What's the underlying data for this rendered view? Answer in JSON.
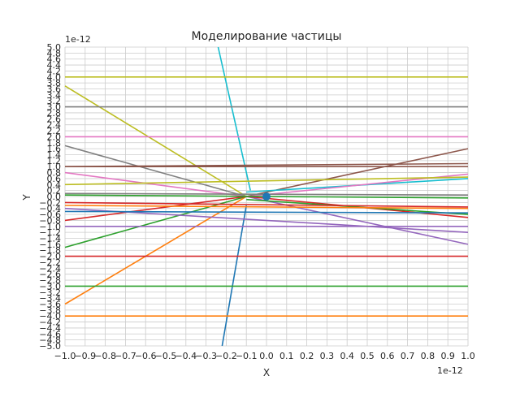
{
  "chart_data": {
    "type": "line",
    "title": "Моделирование частицы",
    "xlabel": "X",
    "ylabel": "Y",
    "x_offset_label": "1e-12",
    "y_offset_label": "1e-12",
    "xlim": [
      -1.0,
      1.0
    ],
    "ylim": [
      -5.0,
      5.0
    ],
    "grid": true,
    "x_ticks": [
      "−1.0",
      "−0.9",
      "−0.8",
      "−0.7",
      "−0.6",
      "−0.5",
      "−0.4",
      "−0.3",
      "−0.2",
      "−0.1",
      "0.0",
      "0.1",
      "0.2",
      "0.3",
      "0.4",
      "0.5",
      "0.6",
      "0.7",
      "0.8",
      "0.9",
      "1.0"
    ],
    "y_tick_values": [
      -5.0,
      -4.8,
      -4.6,
      -4.4,
      -4.2,
      -4.0,
      -3.8,
      -3.6,
      -3.4,
      -3.2,
      -3.0,
      -2.8,
      -2.6,
      -2.4,
      -2.2,
      -2.0,
      -1.8,
      -1.6,
      -1.4,
      -1.2,
      -1.0,
      -0.8,
      -0.6,
      -0.4,
      -0.2,
      0.0,
      0.2,
      0.4,
      0.6,
      0.8,
      1.0,
      1.2,
      1.4,
      1.6,
      1.8,
      2.0,
      2.2,
      2.4,
      2.6,
      2.8,
      3.0,
      3.2,
      3.4,
      3.6,
      3.8,
      4.0,
      4.2,
      4.4,
      4.6,
      4.8,
      5.0
    ],
    "y_tick_labels_legible": [
      "−5.0",
      "5.0"
    ],
    "particle_marker": {
      "x": 0.0,
      "y": 0.0,
      "color": "#1f77b4"
    },
    "series": [
      {
        "color": "#1f77b4",
        "points": [
          [
            -0.22,
            -5.0
          ],
          [
            -0.1,
            -0.3
          ]
        ]
      },
      {
        "color": "#17becf",
        "points": [
          [
            -0.24,
            5.0
          ],
          [
            -0.08,
            0.2
          ]
        ]
      },
      {
        "color": "#ff7f0e",
        "points": [
          [
            -1.0,
            -3.6
          ],
          [
            -0.1,
            0.0
          ]
        ]
      },
      {
        "color": "#2ca02c",
        "points": [
          [
            -1.0,
            -1.7
          ],
          [
            -0.1,
            0.0
          ]
        ]
      },
      {
        "color": "#d62728",
        "points": [
          [
            -1.0,
            -0.8
          ],
          [
            -0.1,
            0.0
          ]
        ]
      },
      {
        "color": "#bcbd22",
        "points": [
          [
            -1.0,
            3.7
          ],
          [
            -0.1,
            0.0
          ]
        ]
      },
      {
        "color": "#7f7f7f",
        "points": [
          [
            -1.0,
            1.7
          ],
          [
            -0.1,
            0.0
          ]
        ]
      },
      {
        "color": "#e377c2",
        "points": [
          [
            -1.0,
            0.8
          ],
          [
            -0.1,
            0.0
          ]
        ]
      },
      {
        "color": "#8c564b",
        "points": [
          [
            -0.1,
            0.0
          ],
          [
            1.0,
            1.6
          ]
        ]
      },
      {
        "color": "#8c564b",
        "points": [
          [
            -1.0,
            1.0
          ],
          [
            1.0,
            1.1
          ]
        ]
      },
      {
        "color": "#9467bd",
        "points": [
          [
            -0.1,
            0.0
          ],
          [
            1.0,
            -1.6
          ]
        ]
      },
      {
        "color": "#17becf",
        "points": [
          [
            -0.1,
            0.15
          ],
          [
            1.0,
            0.6
          ]
        ]
      },
      {
        "color": "#e377c2",
        "points": [
          [
            -0.1,
            0.0
          ],
          [
            1.0,
            0.75
          ]
        ]
      },
      {
        "color": "#bcbd22",
        "points": [
          [
            -1.0,
            0.4
          ],
          [
            1.0,
            0.65
          ]
        ]
      },
      {
        "color": "#d62728",
        "points": [
          [
            -0.1,
            0.0
          ],
          [
            1.0,
            -0.7
          ]
        ]
      },
      {
        "color": "#2ca02c",
        "points": [
          [
            -0.1,
            -0.1
          ],
          [
            1.0,
            -0.6
          ]
        ]
      },
      {
        "color": "#9467bd",
        "points": [
          [
            -1.0,
            -0.4
          ],
          [
            1.0,
            -1.2
          ]
        ]
      },
      {
        "color": "#1f77b4",
        "points": [
          [
            -1.0,
            -0.5
          ],
          [
            1.0,
            -0.55
          ]
        ]
      },
      {
        "color": "#ff7f0e",
        "points": [
          [
            -1.0,
            -0.3
          ],
          [
            1.0,
            -0.4
          ]
        ]
      },
      {
        "color": "#d62728",
        "points": [
          [
            -1.0,
            -0.2
          ],
          [
            1.0,
            -0.35
          ]
        ]
      },
      {
        "color": "#7f7f7f",
        "points": [
          [
            -1.0,
            0.1
          ],
          [
            1.0,
            0.05
          ]
        ]
      },
      {
        "color": "#2ca02c",
        "points": [
          [
            -1.0,
            0.05
          ],
          [
            1.0,
            -0.05
          ]
        ]
      },
      {
        "color": "#bcbd22",
        "points": [
          [
            -1.0,
            4.0
          ],
          [
            1.0,
            4.0
          ]
        ]
      },
      {
        "color": "#7f7f7f",
        "points": [
          [
            -1.0,
            3.0
          ],
          [
            1.0,
            3.0
          ]
        ]
      },
      {
        "color": "#e377c2",
        "points": [
          [
            -1.0,
            2.0
          ],
          [
            1.0,
            2.0
          ]
        ]
      },
      {
        "color": "#8c564b",
        "points": [
          [
            -1.0,
            1.0
          ],
          [
            1.0,
            1.0
          ]
        ]
      },
      {
        "color": "#9467bd",
        "points": [
          [
            -1.0,
            -1.0
          ],
          [
            1.0,
            -1.0
          ]
        ]
      },
      {
        "color": "#d62728",
        "points": [
          [
            -1.0,
            -2.0
          ],
          [
            1.0,
            -2.0
          ]
        ]
      },
      {
        "color": "#2ca02c",
        "points": [
          [
            -1.0,
            -3.0
          ],
          [
            1.0,
            -3.0
          ]
        ]
      },
      {
        "color": "#ff7f0e",
        "points": [
          [
            -1.0,
            -4.0
          ],
          [
            1.0,
            -4.0
          ]
        ]
      }
    ]
  }
}
